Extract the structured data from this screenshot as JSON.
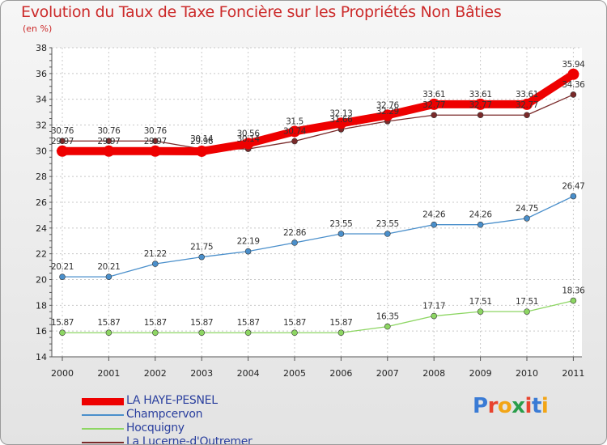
{
  "header": {
    "title": "Evolution du Taux de Taxe Foncière sur les Propriétés Non Bâties",
    "unit": "(en %)"
  },
  "logo": {
    "text": "Proxiti",
    "colors": [
      "#3a7bd5",
      "#e8432e",
      "#f2a516",
      "#2a9d4a",
      "#e8432e",
      "#3a7bd5",
      "#f2a516"
    ]
  },
  "chart_data": {
    "type": "line",
    "title": "Evolution du Taux de Taxe Foncière sur les Propriétés Non Bâties",
    "ylabel": "(en %)",
    "xlabel": "",
    "x": [
      "2000",
      "2001",
      "2002",
      "2003",
      "2004",
      "2005",
      "2006",
      "2007",
      "2008",
      "2009",
      "2010",
      "2011"
    ],
    "ylim": [
      14,
      38
    ],
    "yticks": [
      14,
      16,
      18,
      20,
      22,
      24,
      26,
      28,
      30,
      32,
      34,
      36,
      38
    ],
    "grid": true,
    "legend_position": "bottom-left",
    "series": [
      {
        "name": "LA HAYE-PESNEL",
        "color": "#ee0000",
        "values": [
          29.97,
          29.97,
          29.97,
          29.96,
          30.56,
          31.5,
          32.13,
          32.76,
          33.61,
          33.61,
          33.61,
          35.94
        ],
        "labels": [
          "29.97",
          "29.97",
          "29.97",
          "29.96",
          "30.56",
          "31.5",
          "32.13",
          "32.76",
          "33.61",
          "33.61",
          "33.61",
          "35.94"
        ]
      },
      {
        "name": "Champcervon",
        "color": "#4a8fcb",
        "values": [
          20.21,
          20.21,
          21.22,
          21.75,
          22.19,
          22.86,
          23.55,
          23.55,
          24.26,
          24.26,
          24.75,
          26.47
        ],
        "labels": [
          "20.21",
          "20.21",
          "21.22",
          "21.75",
          "22.19",
          "22.86",
          "23.55",
          "23.55",
          "24.26",
          "24.26",
          "24.75",
          "26.47"
        ]
      },
      {
        "name": "Hocquigny",
        "color": "#8dd663",
        "values": [
          15.87,
          15.87,
          15.87,
          15.87,
          15.87,
          15.87,
          15.87,
          16.35,
          17.17,
          17.51,
          17.51,
          18.36
        ],
        "labels": [
          "15.87",
          "15.87",
          "15.87",
          "15.87",
          "15.87",
          "15.87",
          "15.87",
          "16.35",
          "17.17",
          "17.51",
          "17.51",
          "18.36"
        ]
      },
      {
        "name": "La Lucerne-d'Outremer",
        "color": "#7a2a2a",
        "values": [
          30.76,
          30.76,
          30.76,
          30.14,
          30.14,
          30.74,
          31.66,
          32.29,
          32.77,
          32.77,
          32.77,
          34.36
        ],
        "labels": [
          "30.76",
          "30.76",
          "30.76",
          "30.14",
          "30.14",
          "30.74",
          "31.66",
          "32.29",
          "32.77",
          "32.77",
          "32.77",
          "34.36"
        ]
      }
    ]
  }
}
